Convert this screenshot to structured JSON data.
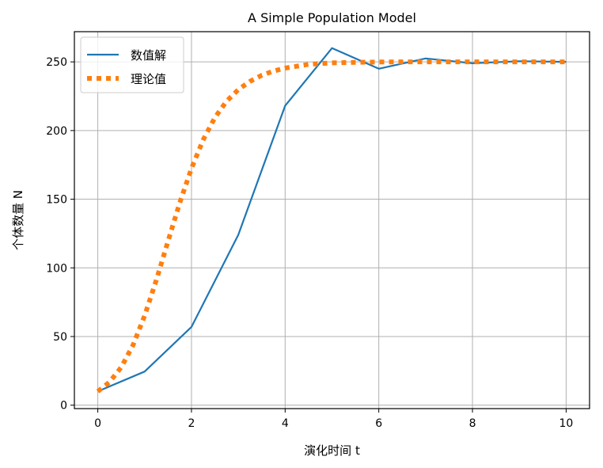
{
  "chart_data": {
    "type": "line",
    "title": "A Simple Population Model",
    "xlabel": "演化时间 t",
    "ylabel": "个体数量 N",
    "xlim": [
      -0.5,
      10.5
    ],
    "ylim": [
      -2.5,
      272
    ],
    "xticks": [
      0,
      2,
      4,
      6,
      8,
      10
    ],
    "yticks": [
      0,
      50,
      100,
      150,
      200,
      250
    ],
    "grid": true,
    "legend_position": "top-left",
    "series": [
      {
        "name": "数值解",
        "color": "#1f77b4",
        "style": "solid",
        "x": [
          0,
          1,
          2,
          3,
          4,
          5,
          6,
          7,
          8,
          9,
          10
        ],
        "y": [
          10,
          24.5,
          57,
          124,
          218,
          260,
          245,
          252.5,
          249,
          250.5,
          250
        ]
      },
      {
        "name": "理论值",
        "color": "#ff7f0e",
        "style": "dotted",
        "x": [
          0,
          0.25,
          0.5,
          0.75,
          1,
          1.25,
          1.5,
          1.75,
          2,
          2.25,
          2.5,
          2.75,
          3,
          3.25,
          3.5,
          3.75,
          4,
          4.5,
          5,
          5.5,
          6,
          6.5,
          7,
          7.5,
          8,
          8.5,
          9,
          9.5,
          10
        ],
        "y": [
          10,
          16.8,
          27.6,
          43.6,
          65.2,
          91.2,
          119.5,
          147.5,
          172.5,
          193.3,
          209.4,
          221.3,
          229.8,
          235.8,
          240.2,
          243.3,
          245.5,
          248.2,
          249.3,
          249.7,
          249.9,
          250,
          250,
          250,
          250,
          250,
          250,
          250,
          250
        ]
      }
    ]
  }
}
